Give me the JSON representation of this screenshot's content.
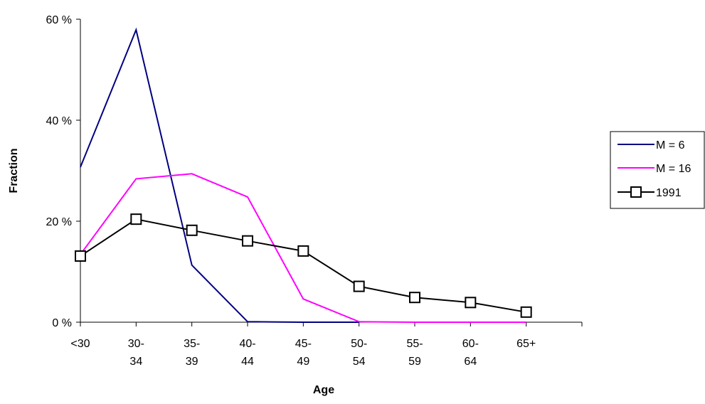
{
  "chart_data": {
    "type": "line",
    "title": "",
    "xlabel": "Age",
    "ylabel": "Fraction",
    "categories": [
      [
        "<30"
      ],
      [
        "30-",
        "34"
      ],
      [
        "35-",
        "39"
      ],
      [
        "40-",
        "44"
      ],
      [
        "45-",
        "49"
      ],
      [
        "50-",
        "54"
      ],
      [
        "55-",
        "59"
      ],
      [
        "60-",
        "64"
      ],
      [
        "65+"
      ]
    ],
    "y_ticks": [
      "0 %",
      "20 %",
      "40 %",
      "60 %"
    ],
    "y_tick_values": [
      0,
      20,
      40,
      60
    ],
    "ylim": [
      0,
      60
    ],
    "grid": false,
    "legend_position": "right",
    "series": [
      {
        "name": "M = 6",
        "color": "#000080",
        "marker": "none",
        "values": [
          30.7,
          57.9,
          11.3,
          0.1,
          0,
          0,
          null,
          null,
          null
        ]
      },
      {
        "name": "M = 16",
        "color": "#ff00ff",
        "marker": "none",
        "values": [
          13.4,
          28.4,
          29.4,
          24.8,
          4.6,
          0.1,
          0,
          0,
          0
        ]
      },
      {
        "name": "1991",
        "color": "#000000",
        "marker": "square",
        "values": [
          13.1,
          20.4,
          18.2,
          16.1,
          14.1,
          7.1,
          4.9,
          3.9,
          2.0
        ]
      }
    ]
  }
}
